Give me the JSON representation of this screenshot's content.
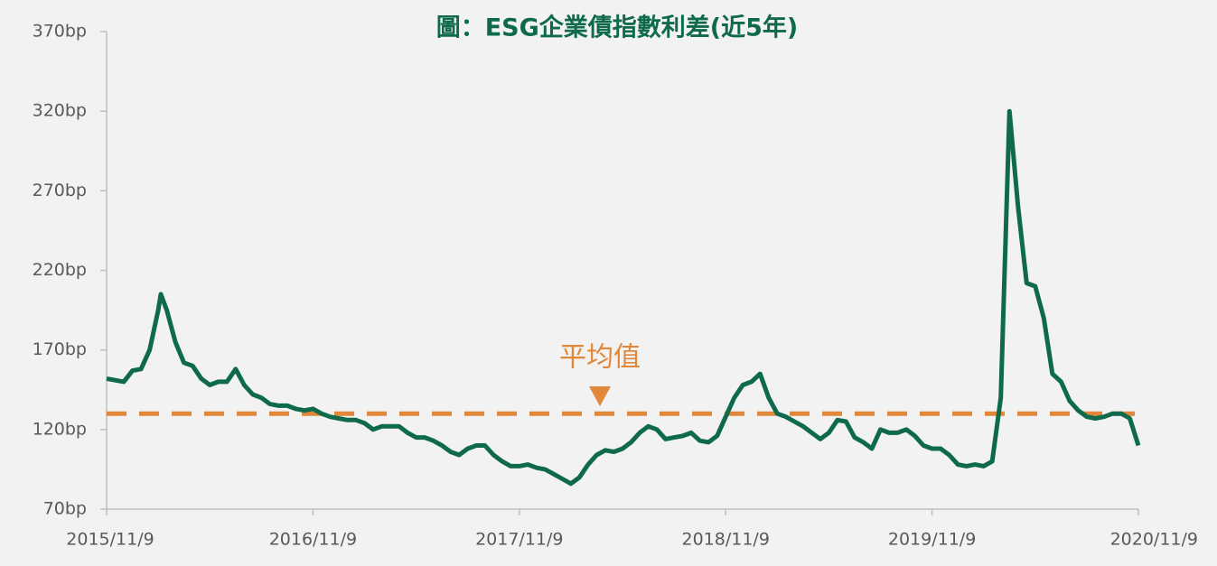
{
  "chart_data": {
    "type": "line",
    "title": "圖：ESG企業債指數利差(近5年)",
    "x": [
      0,
      0.5,
      1,
      1.5,
      2,
      2.5,
      3,
      3.15,
      3.5,
      4,
      4.5,
      5,
      5.5,
      6,
      6.5,
      7,
      7.5,
      8,
      8.5,
      9,
      9.5,
      10,
      10.5,
      11,
      11.5,
      12,
      12.5,
      13,
      13.5,
      14,
      14.5,
      15,
      15.5,
      16,
      16.5,
      17,
      17.5,
      18,
      18.5,
      19,
      19.5,
      20,
      20.5,
      21,
      21.5,
      22,
      22.5,
      23,
      23.5,
      24,
      24.5,
      25,
      25.5,
      26,
      26.5,
      27,
      27.5,
      28,
      28.5,
      29,
      29.5,
      30,
      30.5,
      31,
      31.5,
      32,
      32.5,
      33,
      33.5,
      34,
      34.5,
      35,
      35.5,
      36,
      36.5,
      37,
      37.5,
      38,
      38.5,
      39,
      39.5,
      40,
      40.5,
      41,
      41.5,
      42,
      42.5,
      43,
      43.5,
      44,
      44.5,
      45,
      45.5,
      46,
      46.5,
      47,
      47.5,
      48,
      48.5,
      49,
      49.5,
      50,
      50.5,
      51,
      51.5,
      52,
      52.5,
      53,
      53.5,
      54,
      54.5,
      55,
      55.5,
      56,
      56.5,
      57,
      57.5,
      58,
      58.5,
      59,
      59.5,
      60
    ],
    "series": [
      {
        "color": "#0f6a4d",
        "values": [
          152,
          151,
          150,
          157,
          158,
          170,
          195,
          205,
          195,
          175,
          162,
          160,
          152,
          148,
          150,
          150,
          158,
          148,
          142,
          140,
          136,
          135,
          135,
          133,
          132,
          133,
          130,
          128,
          127,
          126,
          126,
          124,
          120,
          122,
          122,
          122,
          118,
          115,
          115,
          113,
          110,
          106,
          104,
          108,
          110,
          110,
          104,
          100,
          97,
          97,
          98,
          96,
          95,
          92,
          89,
          86,
          90,
          98,
          104,
          107,
          106,
          108,
          112,
          118,
          122,
          120,
          114,
          115,
          116,
          118,
          113,
          112,
          116,
          128,
          140,
          148,
          150,
          155,
          140,
          130,
          128,
          125,
          122,
          118,
          114,
          118,
          126,
          125,
          115,
          112,
          108,
          120,
          118,
          118,
          120,
          116,
          110,
          108,
          108,
          104,
          98,
          97,
          98,
          97,
          100,
          140,
          320,
          260,
          212,
          210,
          190,
          155,
          150,
          138,
          132,
          128,
          127,
          128,
          130,
          130,
          127,
          110
        ]
      }
    ],
    "xlim": [
      0,
      60
    ],
    "xticks": [
      {
        "value": 0,
        "label": "2015/11/9"
      },
      {
        "value": 12,
        "label": "2016/11/9"
      },
      {
        "value": 24,
        "label": "2017/11/9"
      },
      {
        "value": 36,
        "label": "2018/11/9"
      },
      {
        "value": 48,
        "label": "2019/11/9"
      },
      {
        "value": 60,
        "label": "2020/11/9"
      }
    ],
    "ylim": [
      70,
      370
    ],
    "yticks": [
      {
        "value": 70,
        "label": "70bp"
      },
      {
        "value": 120,
        "label": "120bp"
      },
      {
        "value": 170,
        "label": "170bp"
      },
      {
        "value": 220,
        "label": "220bp"
      },
      {
        "value": 270,
        "label": "270bp"
      },
      {
        "value": 320,
        "label": "320bp"
      },
      {
        "value": 370,
        "label": "370bp"
      }
    ],
    "mean_line": {
      "value": 130,
      "label": "平均值",
      "color": "#e0873a"
    }
  }
}
